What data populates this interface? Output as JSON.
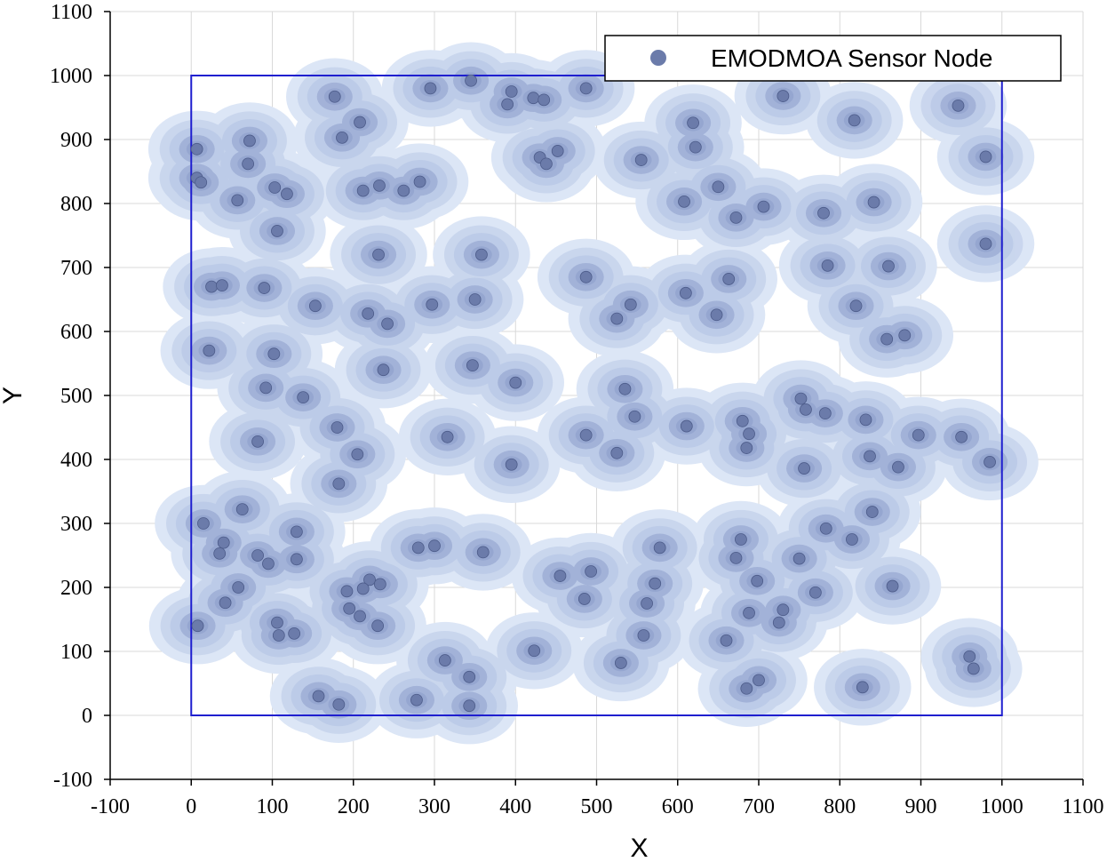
{
  "chart_data": {
    "type": "scatter",
    "title": "",
    "xlabel": "X",
    "ylabel": "Y",
    "xlim": [
      -100,
      1100
    ],
    "ylim": [
      -100,
      1100
    ],
    "x_ticks": [
      "-100",
      "0",
      "100",
      "200",
      "300",
      "400",
      "500",
      "600",
      "700",
      "800",
      "900",
      "1000",
      "1100"
    ],
    "y_ticks": [
      "-100",
      "0",
      "100",
      "200",
      "300",
      "400",
      "500",
      "600",
      "700",
      "800",
      "900",
      "1000",
      "1100"
    ],
    "grid": true,
    "legend_position": "top-right",
    "deployment_area": {
      "x": [
        0,
        1000
      ],
      "y": [
        0,
        1000
      ]
    },
    "colors": {
      "node": "#6B7BAA",
      "coverage_outer": "#DCE6F6",
      "coverage_mid": "#B3C3E4",
      "coverage_inner": "#8E9FCB",
      "boundary": "#1F1FCF",
      "grid": "#D9D9D9"
    },
    "series": [
      {
        "name": "EMODMOA Sensor Node",
        "points": [
          [
            7,
            885
          ],
          [
            7,
            840
          ],
          [
            12,
            833
          ],
          [
            72,
            898
          ],
          [
            70,
            862
          ],
          [
            57,
            805
          ],
          [
            103,
            825
          ],
          [
            118,
            815
          ],
          [
            106,
            757
          ],
          [
            177,
            967
          ],
          [
            208,
            927
          ],
          [
            186,
            903
          ],
          [
            212,
            820
          ],
          [
            232,
            828
          ],
          [
            262,
            820
          ],
          [
            282,
            834
          ],
          [
            295,
            980
          ],
          [
            345,
            992
          ],
          [
            395,
            975
          ],
          [
            390,
            955
          ],
          [
            422,
            965
          ],
          [
            435,
            962
          ],
          [
            487,
            980
          ],
          [
            430,
            872
          ],
          [
            438,
            862
          ],
          [
            452,
            882
          ],
          [
            555,
            868
          ],
          [
            619,
            926
          ],
          [
            622,
            888
          ],
          [
            608,
            803
          ],
          [
            650,
            826
          ],
          [
            672,
            778
          ],
          [
            706,
            795
          ],
          [
            730,
            968
          ],
          [
            818,
            930
          ],
          [
            946,
            953
          ],
          [
            980,
            873
          ],
          [
            780,
            785
          ],
          [
            842,
            802
          ],
          [
            980,
            737
          ],
          [
            25,
            670
          ],
          [
            38,
            672
          ],
          [
            90,
            668
          ],
          [
            153,
            640
          ],
          [
            218,
            628
          ],
          [
            242,
            612
          ],
          [
            231,
            720
          ],
          [
            297,
            642
          ],
          [
            350,
            650
          ],
          [
            358,
            720
          ],
          [
            487,
            685
          ],
          [
            525,
            620
          ],
          [
            542,
            642
          ],
          [
            610,
            660
          ],
          [
            663,
            682
          ],
          [
            648,
            626
          ],
          [
            785,
            703
          ],
          [
            860,
            702
          ],
          [
            820,
            640
          ],
          [
            858,
            588
          ],
          [
            880,
            594
          ],
          [
            22,
            570
          ],
          [
            102,
            565
          ],
          [
            92,
            512
          ],
          [
            138,
            497
          ],
          [
            180,
            450
          ],
          [
            82,
            428
          ],
          [
            205,
            408
          ],
          [
            182,
            362
          ],
          [
            237,
            540
          ],
          [
            347,
            547
          ],
          [
            400,
            520
          ],
          [
            316,
            435
          ],
          [
            395,
            392
          ],
          [
            535,
            510
          ],
          [
            547,
            467
          ],
          [
            487,
            438
          ],
          [
            525,
            410
          ],
          [
            611,
            452
          ],
          [
            680,
            460
          ],
          [
            688,
            440
          ],
          [
            685,
            418
          ],
          [
            752,
            495
          ],
          [
            758,
            478
          ],
          [
            782,
            472
          ],
          [
            832,
            462
          ],
          [
            837,
            405
          ],
          [
            756,
            386
          ],
          [
            872,
            388
          ],
          [
            897,
            438
          ],
          [
            950,
            435
          ],
          [
            985,
            396
          ],
          [
            15,
            300
          ],
          [
            63,
            322
          ],
          [
            40,
            270
          ],
          [
            35,
            253
          ],
          [
            82,
            250
          ],
          [
            95,
            237
          ],
          [
            130,
            287
          ],
          [
            130,
            244
          ],
          [
            58,
            200
          ],
          [
            42,
            176
          ],
          [
            192,
            194
          ],
          [
            220,
            212
          ],
          [
            212,
            198
          ],
          [
            233,
            205
          ],
          [
            195,
            167
          ],
          [
            208,
            155
          ],
          [
            230,
            140
          ],
          [
            8,
            140
          ],
          [
            106,
            145
          ],
          [
            108,
            125
          ],
          [
            127,
            128
          ],
          [
            280,
            262
          ],
          [
            300,
            265
          ],
          [
            360,
            255
          ],
          [
            455,
            218
          ],
          [
            493,
            225
          ],
          [
            485,
            182
          ],
          [
            578,
            262
          ],
          [
            572,
            206
          ],
          [
            562,
            175
          ],
          [
            558,
            125
          ],
          [
            530,
            82
          ],
          [
            423,
            101
          ],
          [
            313,
            86
          ],
          [
            343,
            60
          ],
          [
            343,
            15
          ],
          [
            157,
            30
          ],
          [
            182,
            17
          ],
          [
            278,
            24
          ],
          [
            678,
            275
          ],
          [
            672,
            246
          ],
          [
            698,
            210
          ],
          [
            688,
            160
          ],
          [
            660,
            117
          ],
          [
            685,
            42
          ],
          [
            700,
            55
          ],
          [
            730,
            165
          ],
          [
            725,
            145
          ],
          [
            750,
            245
          ],
          [
            770,
            192
          ],
          [
            783,
            292
          ],
          [
            815,
            275
          ],
          [
            840,
            318
          ],
          [
            865,
            202
          ],
          [
            828,
            44
          ],
          [
            960,
            92
          ],
          [
            965,
            73
          ]
        ]
      }
    ]
  }
}
